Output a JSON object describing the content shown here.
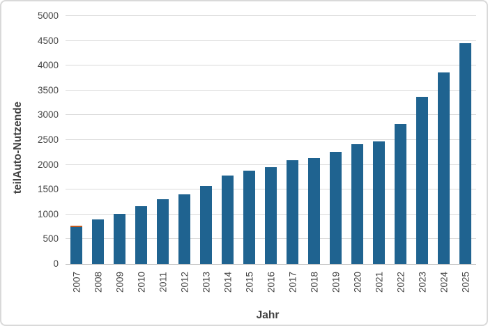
{
  "chart_data": {
    "type": "bar",
    "title": "",
    "xlabel": "Jahr",
    "ylabel": "teilAuto-Nutzende",
    "categories": [
      "2007",
      "2008",
      "2009",
      "2010",
      "2011",
      "2012",
      "2013",
      "2014",
      "2015",
      "2016",
      "2017",
      "2018",
      "2019",
      "2020",
      "2021",
      "2022",
      "2023",
      "2024",
      "2025"
    ],
    "values": [
      770,
      900,
      1010,
      1160,
      1310,
      1400,
      1580,
      1790,
      1880,
      1950,
      2090,
      2140,
      2260,
      2410,
      2470,
      2830,
      3370,
      3860,
      4450
    ],
    "ylim": [
      0,
      5000
    ],
    "ytick_step": 500,
    "ytick_labels": [
      "0",
      "500",
      "1000",
      "1500",
      "2000",
      "2500",
      "3000",
      "3500",
      "4000",
      "4500",
      "5000"
    ],
    "grid": true,
    "legend_position": "none",
    "bar_color": "#1f6390",
    "first_bar_top_cap": {
      "category": "2007",
      "color": "#c15a1f"
    },
    "gridline_color": "#d9d9d9",
    "axis_line_color": "#bfbfbf",
    "tick_text_color": "#444444",
    "title_text_color": "#3f3f3f",
    "frame_border_color": "#d9d9d9",
    "background_color": "#ffffff"
  }
}
